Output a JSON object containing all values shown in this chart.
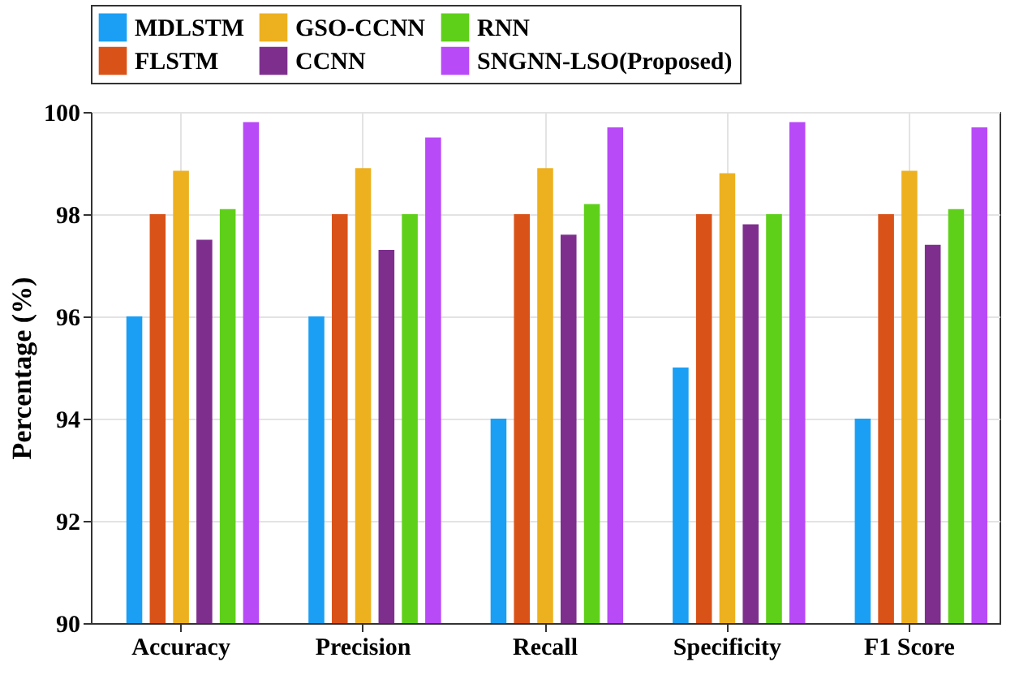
{
  "chart_data": {
    "type": "bar",
    "ylabel": "Percentage (%)",
    "categories": [
      "Accuracy",
      "Precision",
      "Recall",
      "Specificity",
      "F1 Score"
    ],
    "series": [
      {
        "name": "MDLSTM",
        "color": "#1a9ff5",
        "values": [
          96,
          96,
          94,
          95,
          94
        ]
      },
      {
        "name": "FLSTM",
        "color": "#d95319",
        "values": [
          98,
          98,
          98,
          98,
          98
        ]
      },
      {
        "name": "GSO-CCNN",
        "color": "#edb120",
        "values": [
          98.85,
          98.9,
          98.9,
          98.8,
          98.85
        ]
      },
      {
        "name": "CCNN",
        "color": "#7e2f8e",
        "values": [
          97.5,
          97.3,
          97.6,
          97.8,
          97.4
        ]
      },
      {
        "name": "RNN",
        "color": "#5fd01a",
        "values": [
          98.1,
          98,
          98.2,
          98,
          98.1
        ]
      },
      {
        "name": "SNGNN-LSO(Proposed)",
        "color": "#b84af7",
        "values": [
          99.8,
          99.5,
          99.7,
          99.8,
          99.7
        ]
      }
    ],
    "ylim": [
      90,
      100
    ],
    "yticks": [
      90,
      92,
      94,
      96,
      98,
      100
    ],
    "grid": true,
    "legend": "top"
  }
}
